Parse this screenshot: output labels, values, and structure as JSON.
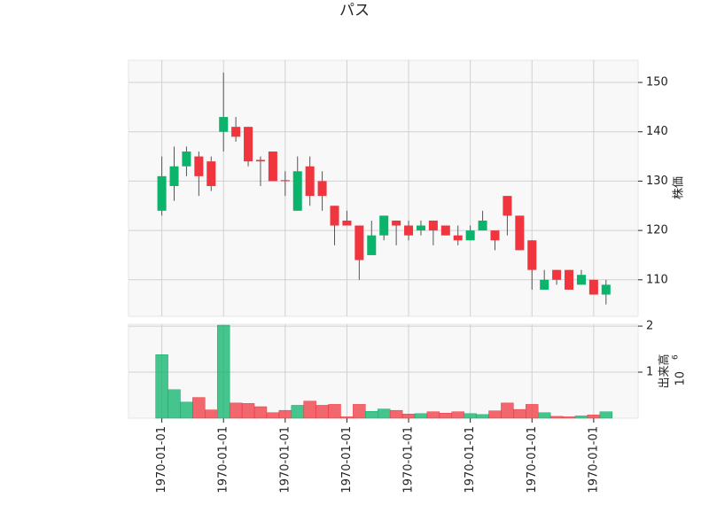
{
  "chart_data": {
    "type": "candlestick",
    "title": "パス",
    "ylabel": "株価",
    "volume_label": "出来高",
    "volume_offset": {
      "base": "10",
      "exponent": "6"
    },
    "up_color": "#0bb36b",
    "down_color": "#f0353f",
    "wick_color": "#555555",
    "grid": true,
    "x": [
      0,
      1,
      2,
      3,
      4,
      5,
      6,
      7,
      8,
      9,
      10,
      11,
      12,
      13,
      14,
      15,
      16,
      17,
      18,
      19,
      20,
      21,
      22,
      23,
      24,
      25,
      26,
      27,
      28,
      29,
      30,
      31,
      32,
      33,
      34,
      35,
      36
    ],
    "open": [
      124,
      129,
      133,
      135,
      134,
      140,
      141,
      141,
      134.3,
      136,
      130.2,
      124,
      133,
      130,
      125,
      122,
      121,
      115,
      119,
      122,
      121,
      120,
      122,
      121,
      119,
      118,
      120,
      120,
      127,
      123,
      118,
      108,
      112,
      112,
      109,
      110,
      107
    ],
    "high": [
      135,
      137,
      137,
      136,
      135,
      152,
      143,
      141,
      135,
      136,
      132,
      135,
      135,
      132,
      125,
      124,
      121,
      122,
      123,
      122,
      122,
      122,
      122,
      121,
      121,
      121,
      124,
      120,
      127,
      123,
      118,
      112,
      112,
      112,
      112,
      110,
      110
    ],
    "low": [
      123,
      126,
      131,
      127,
      128,
      136,
      138,
      133,
      129,
      130,
      127,
      124,
      125,
      124,
      117,
      121,
      110,
      115,
      118,
      117,
      118,
      119,
      117,
      119,
      117,
      118,
      120,
      116,
      119,
      116,
      108,
      108,
      109,
      108,
      109,
      107,
      105
    ],
    "close": [
      131,
      133,
      136,
      131,
      129,
      143,
      139,
      134,
      134,
      130,
      130,
      132,
      127,
      127,
      121,
      121,
      114,
      119,
      123,
      121,
      119,
      121,
      120,
      119,
      118,
      120,
      122,
      118,
      123,
      116,
      112,
      110,
      110,
      108,
      111,
      107,
      109
    ],
    "volume": [
      1.38,
      0.62,
      0.35,
      0.45,
      0.18,
      2.02,
      0.33,
      0.32,
      0.25,
      0.12,
      0.17,
      0.28,
      0.37,
      0.28,
      0.3,
      0.03,
      0.3,
      0.15,
      0.2,
      0.17,
      0.09,
      0.1,
      0.14,
      0.11,
      0.14,
      0.1,
      0.08,
      0.16,
      0.33,
      0.19,
      0.3,
      0.12,
      0.04,
      0.03,
      0.05,
      0.07,
      0.14
    ],
    "xlim": [
      -2.7,
      38.6
    ],
    "xticks": [
      {
        "value": 0,
        "label": "1970-01-01"
      },
      {
        "value": 5,
        "label": "1970-01-01"
      },
      {
        "value": 10,
        "label": "1970-01-01"
      },
      {
        "value": 15,
        "label": "1970-01-01"
      },
      {
        "value": 20,
        "label": "1970-01-01"
      },
      {
        "value": 25,
        "label": "1970-01-01"
      },
      {
        "value": 30,
        "label": "1970-01-01"
      },
      {
        "value": 35,
        "label": "1970-01-01"
      }
    ],
    "ylim": [
      102.6,
      154.5
    ],
    "yticks": [
      110,
      120,
      130,
      140,
      150
    ],
    "y2lim": [
      0,
      2.04
    ],
    "y2ticks": [
      1,
      2
    ]
  }
}
